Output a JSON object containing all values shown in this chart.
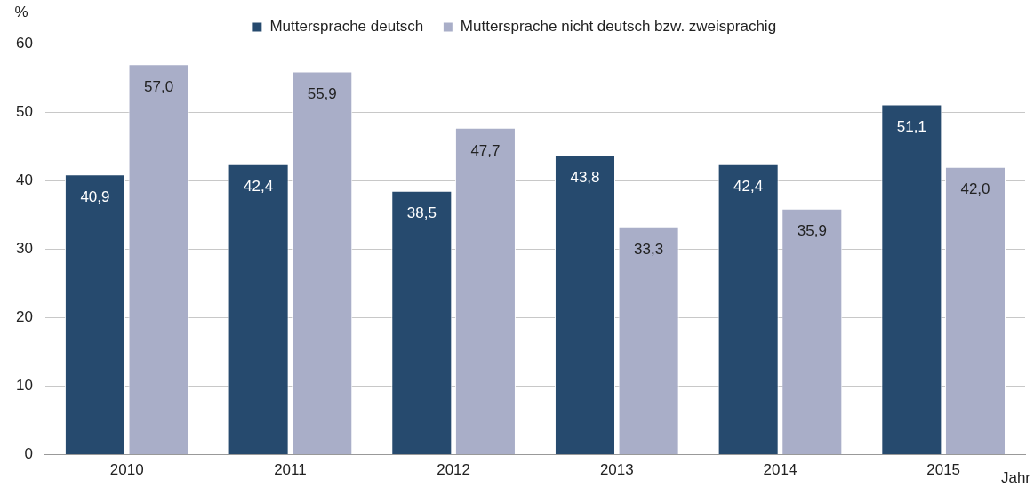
{
  "chart_data": {
    "type": "bar",
    "ylabel": "%",
    "xlabel": "Jahr",
    "categories": [
      "2010",
      "2011",
      "2012",
      "2013",
      "2014",
      "2015"
    ],
    "series": [
      {
        "name": "Muttersprache deutsch",
        "color": "#264a6e",
        "values": [
          40.9,
          42.4,
          38.5,
          43.8,
          42.4,
          51.1
        ],
        "value_labels": [
          "40,9",
          "42,4",
          "38,5",
          "43,8",
          "42,4",
          "51,1"
        ]
      },
      {
        "name": "Muttersprache nicht deutsch bzw. zweisprachig",
        "color": "#a9aec8",
        "values": [
          57.0,
          55.9,
          47.7,
          33.3,
          35.9,
          42.0
        ],
        "value_labels": [
          "57,0",
          "55,9",
          "47,7",
          "33,3",
          "35,9",
          "42,0"
        ]
      }
    ],
    "ylim": [
      0,
      60
    ],
    "yticks": [
      0,
      10,
      20,
      30,
      40,
      50,
      60
    ],
    "grid": "y",
    "legend": "top"
  }
}
